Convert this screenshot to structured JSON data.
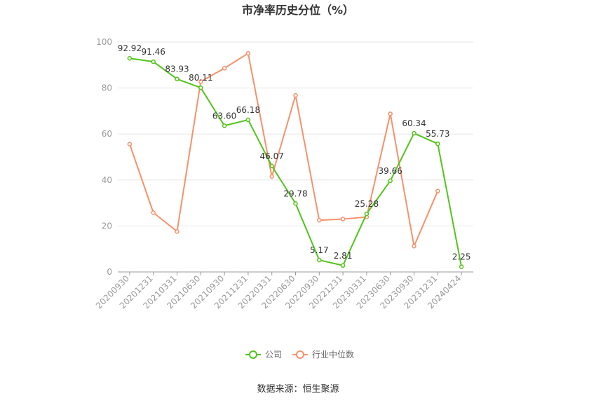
{
  "chart_data": {
    "type": "line",
    "title": "市净率历史分位（%）",
    "categories": [
      "20200930",
      "20201231",
      "20210331",
      "20210630",
      "20210930",
      "20211231",
      "20220331",
      "20220630",
      "20220930",
      "20221231",
      "20230331",
      "20230630",
      "20230930",
      "20231231",
      "20240424"
    ],
    "ylim": [
      0,
      100
    ],
    "yticks": [
      0,
      20,
      40,
      60,
      80,
      100
    ],
    "grid": true,
    "legend": "bottom-center",
    "series": [
      {
        "name": "公司",
        "color": "#52c41a",
        "values": [
          92.92,
          91.46,
          83.93,
          80.11,
          63.6,
          66.18,
          46.07,
          29.78,
          5.17,
          2.81,
          25.28,
          39.66,
          60.34,
          55.73,
          2.25
        ],
        "labels": [
          "92.92",
          "91.46",
          "83.93",
          "80.11",
          "63.60",
          "66.18",
          "46.07",
          "29.78",
          "5.17",
          "2.81",
          "25.28",
          "39.66",
          "60.34",
          "55.73",
          "2.25"
        ]
      },
      {
        "name": "行业中位数",
        "color": "#f4926b",
        "values": [
          55.6,
          25.8,
          17.6,
          82.8,
          88.6,
          95.1,
          41.5,
          76.8,
          22.5,
          23.0,
          23.9,
          68.8,
          11.2,
          35.2,
          null
        ]
      }
    ],
    "source": "数据来源：恒生聚源"
  }
}
